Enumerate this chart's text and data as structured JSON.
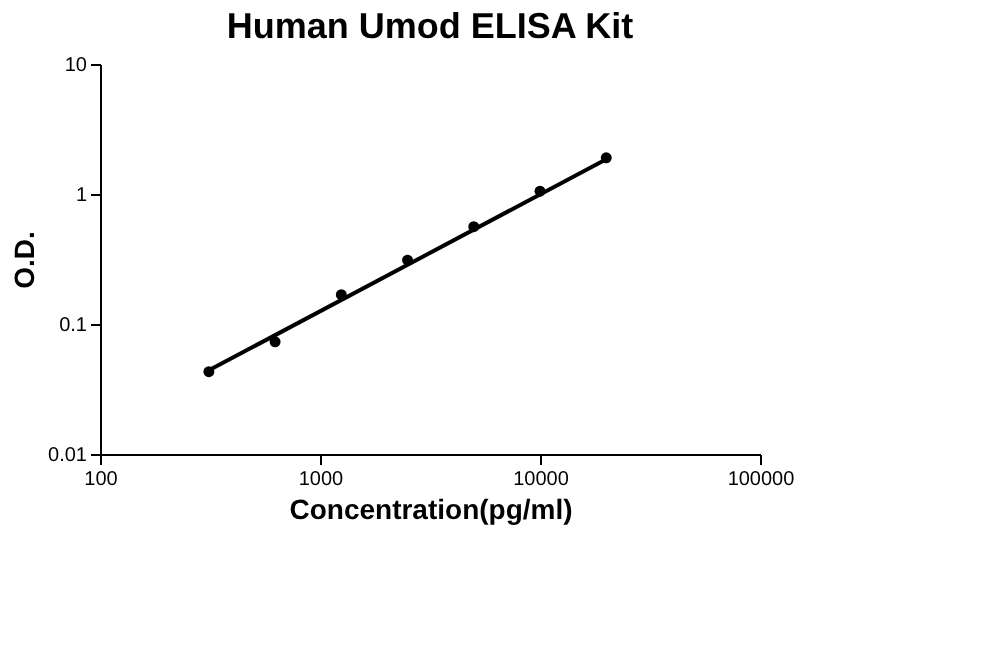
{
  "chart_data": {
    "type": "scatter",
    "title": "Human Umod ELISA Kit",
    "xlabel": "Concentration(pg/ml)",
    "ylabel": "O.D.",
    "log": "xy",
    "grid": false,
    "xlim": [
      100,
      100000
    ],
    "xticks": [
      100,
      1000,
      10000,
      100000
    ],
    "ylim": [
      0.01,
      10
    ],
    "yticks": [
      0.01,
      0.1,
      1,
      10
    ],
    "series": [
      {
        "type": "scatter",
        "color": "#000000",
        "marker": "circle",
        "x": [
          312.5,
          625,
          1250,
          2500,
          5000,
          10000,
          20000
        ],
        "values": [
          0.043,
          0.073,
          0.168,
          0.31,
          0.56,
          1.05,
          1.9
        ]
      },
      {
        "type": "line",
        "color": "#000000",
        "marker": "none",
        "line_style": "solid",
        "x": [
          312.5,
          20000
        ],
        "values": [
          0.044,
          1.85
        ]
      }
    ]
  }
}
